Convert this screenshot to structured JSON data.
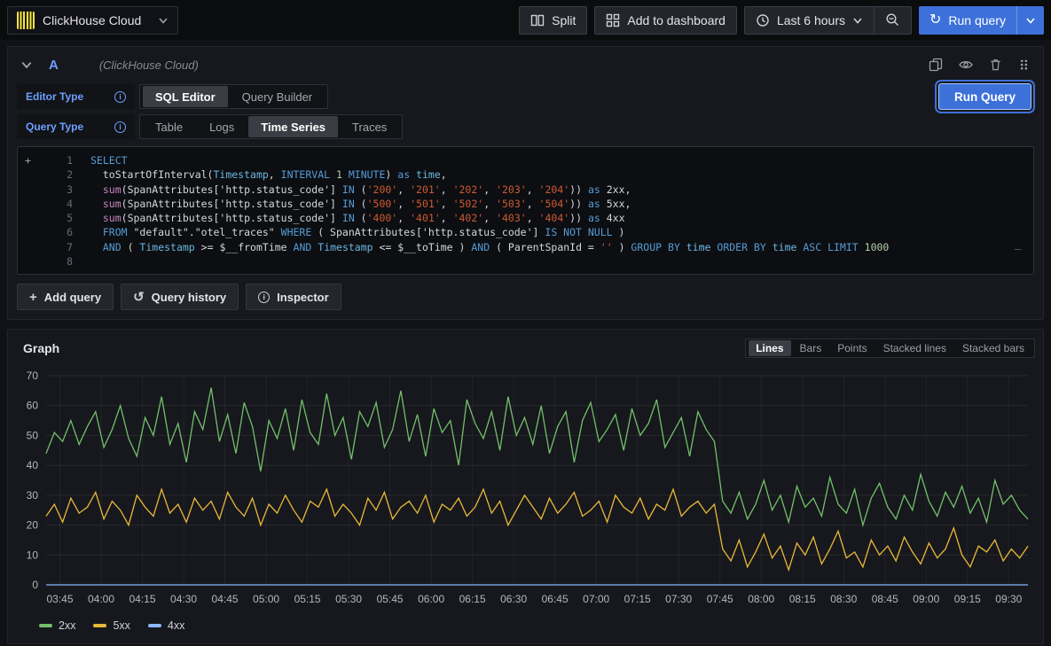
{
  "icons": {
    "plus": "+",
    "history": "↺",
    "sync": "↻",
    "info": "i"
  },
  "topbar": {
    "datasource": {
      "label": "ClickHouse Cloud"
    },
    "split_label": "Split",
    "add_to_dashboard_label": "Add to dashboard",
    "time_range_label": "Last 6 hours",
    "run_query_label": "Run query"
  },
  "query_editor": {
    "ref_id": "A",
    "datasource_hint": "(ClickHouse Cloud)",
    "editor_type": {
      "label": "Editor Type",
      "options": [
        "SQL Editor",
        "Query Builder"
      ],
      "active": "SQL Editor"
    },
    "query_type": {
      "label": "Query Type",
      "options": [
        "Table",
        "Logs",
        "Time Series",
        "Traces"
      ],
      "active": "Time Series"
    },
    "run_query_label": "Run Query",
    "footer": {
      "add_query": "Add query",
      "query_history": "Query history",
      "inspector": "Inspector"
    },
    "sql_lines": [
      [
        {
          "t": "SELECT",
          "c": "kw"
        }
      ],
      [
        {
          "t": "  toStartOfInterval(",
          "c": "pl"
        },
        {
          "t": "Timestamp",
          "c": "var"
        },
        {
          "t": ", ",
          "c": "pl"
        },
        {
          "t": "INTERVAL",
          "c": "kw"
        },
        {
          "t": " ",
          "c": "pl"
        },
        {
          "t": "1",
          "c": "num"
        },
        {
          "t": " ",
          "c": "pl"
        },
        {
          "t": "MINUTE",
          "c": "kw"
        },
        {
          "t": ") ",
          "c": "pl"
        },
        {
          "t": "as",
          "c": "kw"
        },
        {
          "t": " ",
          "c": "pl"
        },
        {
          "t": "time",
          "c": "var"
        },
        {
          "t": ",",
          "c": "pl"
        }
      ],
      [
        {
          "t": "  ",
          "c": "pl"
        },
        {
          "t": "sum",
          "c": "fn"
        },
        {
          "t": "(SpanAttributes['http.status_code'] ",
          "c": "pl"
        },
        {
          "t": "IN",
          "c": "kw"
        },
        {
          "t": " (",
          "c": "pl"
        },
        {
          "t": "'200'",
          "c": "str"
        },
        {
          "t": ", ",
          "c": "pl"
        },
        {
          "t": "'201'",
          "c": "str"
        },
        {
          "t": ", ",
          "c": "pl"
        },
        {
          "t": "'202'",
          "c": "str"
        },
        {
          "t": ", ",
          "c": "pl"
        },
        {
          "t": "'203'",
          "c": "str"
        },
        {
          "t": ", ",
          "c": "pl"
        },
        {
          "t": "'204'",
          "c": "str"
        },
        {
          "t": ")) ",
          "c": "pl"
        },
        {
          "t": "as",
          "c": "kw"
        },
        {
          "t": " 2xx,",
          "c": "pl"
        }
      ],
      [
        {
          "t": "  ",
          "c": "pl"
        },
        {
          "t": "sum",
          "c": "fn"
        },
        {
          "t": "(SpanAttributes['http.status_code'] ",
          "c": "pl"
        },
        {
          "t": "IN",
          "c": "kw"
        },
        {
          "t": " (",
          "c": "pl"
        },
        {
          "t": "'500'",
          "c": "str"
        },
        {
          "t": ", ",
          "c": "pl"
        },
        {
          "t": "'501'",
          "c": "str"
        },
        {
          "t": ", ",
          "c": "pl"
        },
        {
          "t": "'502'",
          "c": "str"
        },
        {
          "t": ", ",
          "c": "pl"
        },
        {
          "t": "'503'",
          "c": "str"
        },
        {
          "t": ", ",
          "c": "pl"
        },
        {
          "t": "'504'",
          "c": "str"
        },
        {
          "t": ")) ",
          "c": "pl"
        },
        {
          "t": "as",
          "c": "kw"
        },
        {
          "t": " 5xx,",
          "c": "pl"
        }
      ],
      [
        {
          "t": "  ",
          "c": "pl"
        },
        {
          "t": "sum",
          "c": "fn"
        },
        {
          "t": "(SpanAttributes['http.status_code'] ",
          "c": "pl"
        },
        {
          "t": "IN",
          "c": "kw"
        },
        {
          "t": " (",
          "c": "pl"
        },
        {
          "t": "'400'",
          "c": "str"
        },
        {
          "t": ", ",
          "c": "pl"
        },
        {
          "t": "'401'",
          "c": "str"
        },
        {
          "t": ", ",
          "c": "pl"
        },
        {
          "t": "'402'",
          "c": "str"
        },
        {
          "t": ", ",
          "c": "pl"
        },
        {
          "t": "'403'",
          "c": "str"
        },
        {
          "t": ", ",
          "c": "pl"
        },
        {
          "t": "'404'",
          "c": "str"
        },
        {
          "t": ")) ",
          "c": "pl"
        },
        {
          "t": "as",
          "c": "kw"
        },
        {
          "t": " 4xx",
          "c": "pl"
        }
      ],
      [
        {
          "t": "  ",
          "c": "pl"
        },
        {
          "t": "FROM",
          "c": "kw"
        },
        {
          "t": " \"default\".\"otel_traces\" ",
          "c": "pl"
        },
        {
          "t": "WHERE",
          "c": "kw"
        },
        {
          "t": " ( SpanAttributes['http.status_code'] ",
          "c": "pl"
        },
        {
          "t": "IS NOT NULL",
          "c": "kw"
        },
        {
          "t": " )",
          "c": "pl"
        }
      ],
      [
        {
          "t": "  ",
          "c": "pl"
        },
        {
          "t": "AND",
          "c": "kw"
        },
        {
          "t": " ( ",
          "c": "pl"
        },
        {
          "t": "Timestamp",
          "c": "var"
        },
        {
          "t": " >= ",
          "c": "pl"
        },
        {
          "t": "$__fromTime",
          "c": "pl"
        },
        {
          "t": " ",
          "c": "pl"
        },
        {
          "t": "AND",
          "c": "kw"
        },
        {
          "t": " ",
          "c": "pl"
        },
        {
          "t": "Timestamp",
          "c": "var"
        },
        {
          "t": " <= ",
          "c": "pl"
        },
        {
          "t": "$__toTime",
          "c": "pl"
        },
        {
          "t": " ) ",
          "c": "pl"
        },
        {
          "t": "AND",
          "c": "kw"
        },
        {
          "t": " ( ParentSpanId = ",
          "c": "pl"
        },
        {
          "t": "''",
          "c": "str"
        },
        {
          "t": " ) ",
          "c": "pl"
        },
        {
          "t": "GROUP BY",
          "c": "kw"
        },
        {
          "t": " ",
          "c": "pl"
        },
        {
          "t": "time",
          "c": "var"
        },
        {
          "t": " ",
          "c": "pl"
        },
        {
          "t": "ORDER BY",
          "c": "kw"
        },
        {
          "t": " ",
          "c": "pl"
        },
        {
          "t": "time",
          "c": "var"
        },
        {
          "t": " ",
          "c": "pl"
        },
        {
          "t": "ASC",
          "c": "kw"
        },
        {
          "t": " ",
          "c": "pl"
        },
        {
          "t": "LIMIT",
          "c": "kw"
        },
        {
          "t": " ",
          "c": "pl"
        },
        {
          "t": "1000",
          "c": "num"
        }
      ],
      []
    ]
  },
  "graph_panel": {
    "title": "Graph",
    "modes": [
      "Lines",
      "Bars",
      "Points",
      "Stacked lines",
      "Stacked bars"
    ],
    "active_mode": "Lines"
  },
  "chart_data": {
    "type": "line",
    "title": "Graph",
    "xlabel": "",
    "ylabel": "",
    "ylim": [
      0,
      70
    ],
    "y_ticks": [
      0,
      10,
      20,
      30,
      40,
      50,
      60,
      70
    ],
    "grid": true,
    "legend_position": "bottom",
    "x_start": "03:40",
    "x_step_minutes": 3,
    "x_tick_labels": [
      "03:45",
      "04:00",
      "04:15",
      "04:30",
      "04:45",
      "05:00",
      "05:15",
      "05:30",
      "05:45",
      "06:00",
      "06:15",
      "06:30",
      "06:45",
      "07:00",
      "07:15",
      "07:30",
      "07:45",
      "08:00",
      "08:15",
      "08:30",
      "08:45",
      "09:00",
      "09:15",
      "09:30"
    ],
    "series": [
      {
        "name": "2xx",
        "color": "#73BF69",
        "values": [
          44,
          51,
          48,
          55,
          47,
          53,
          58,
          46,
          52,
          60,
          49,
          43,
          56,
          50,
          63,
          47,
          54,
          41,
          58,
          52,
          66,
          48,
          57,
          44,
          61,
          53,
          38,
          55,
          49,
          59,
          45,
          62,
          51,
          47,
          64,
          50,
          56,
          42,
          58,
          53,
          61,
          46,
          52,
          65,
          48,
          57,
          43,
          59,
          51,
          55,
          40,
          62,
          54,
          49,
          58,
          45,
          63,
          50,
          56,
          47,
          60,
          44,
          53,
          58,
          41,
          55,
          61,
          48,
          52,
          57,
          45,
          59,
          50,
          54,
          62,
          46,
          51,
          56,
          43,
          58,
          52,
          48,
          28,
          24,
          31,
          22,
          27,
          35,
          25,
          30,
          21,
          33,
          26,
          29,
          23,
          36,
          27,
          24,
          32,
          20,
          29,
          34,
          26,
          22,
          30,
          25,
          37,
          28,
          23,
          31,
          26,
          33,
          24,
          29,
          21,
          35,
          27,
          30,
          25,
          22
        ]
      },
      {
        "name": "5xx",
        "color": "#EAB839",
        "values": [
          23,
          27,
          21,
          29,
          24,
          26,
          31,
          22,
          28,
          25,
          20,
          30,
          26,
          23,
          32,
          24,
          27,
          21,
          29,
          25,
          28,
          22,
          31,
          26,
          23,
          29,
          20,
          27,
          24,
          30,
          25,
          21,
          28,
          26,
          32,
          23,
          27,
          24,
          20,
          29,
          25,
          31,
          22,
          26,
          28,
          24,
          30,
          21,
          27,
          25,
          29,
          23,
          26,
          32,
          24,
          28,
          20,
          25,
          30,
          26,
          22,
          29,
          24,
          27,
          31,
          23,
          25,
          28,
          21,
          30,
          26,
          24,
          29,
          22,
          27,
          25,
          32,
          23,
          26,
          28,
          24,
          27,
          12,
          8,
          15,
          6,
          11,
          17,
          9,
          13,
          5,
          14,
          10,
          16,
          7,
          12,
          18,
          9,
          11,
          6,
          15,
          10,
          13,
          8,
          16,
          11,
          7,
          14,
          9,
          12,
          19,
          10,
          6,
          13,
          11,
          15,
          8,
          12,
          9,
          13
        ]
      },
      {
        "name": "4xx",
        "color": "#8AB8FF",
        "values": [
          0,
          0,
          0,
          0,
          0,
          0,
          0,
          0,
          0,
          0,
          0,
          0,
          0,
          0,
          0,
          0,
          0,
          0,
          0,
          0,
          0,
          0,
          0,
          0,
          0,
          0,
          0,
          0,
          0,
          0,
          0,
          0,
          0,
          0,
          0,
          0,
          0,
          0,
          0,
          0,
          0,
          0,
          0,
          0,
          0,
          0,
          0,
          0,
          0,
          0,
          0,
          0,
          0,
          0,
          0,
          0,
          0,
          0,
          0,
          0,
          0,
          0,
          0,
          0,
          0,
          0,
          0,
          0,
          0,
          0,
          0,
          0,
          0,
          0,
          0,
          0,
          0,
          0,
          0,
          0,
          0,
          0,
          0,
          0,
          0,
          0,
          0,
          0,
          0,
          0,
          0,
          0,
          0,
          0,
          0,
          0,
          0,
          0,
          0,
          0,
          0,
          0,
          0,
          0,
          0,
          0,
          0,
          0,
          0,
          0,
          0,
          0,
          0,
          0,
          0,
          0,
          0,
          0,
          0,
          0
        ]
      }
    ]
  }
}
